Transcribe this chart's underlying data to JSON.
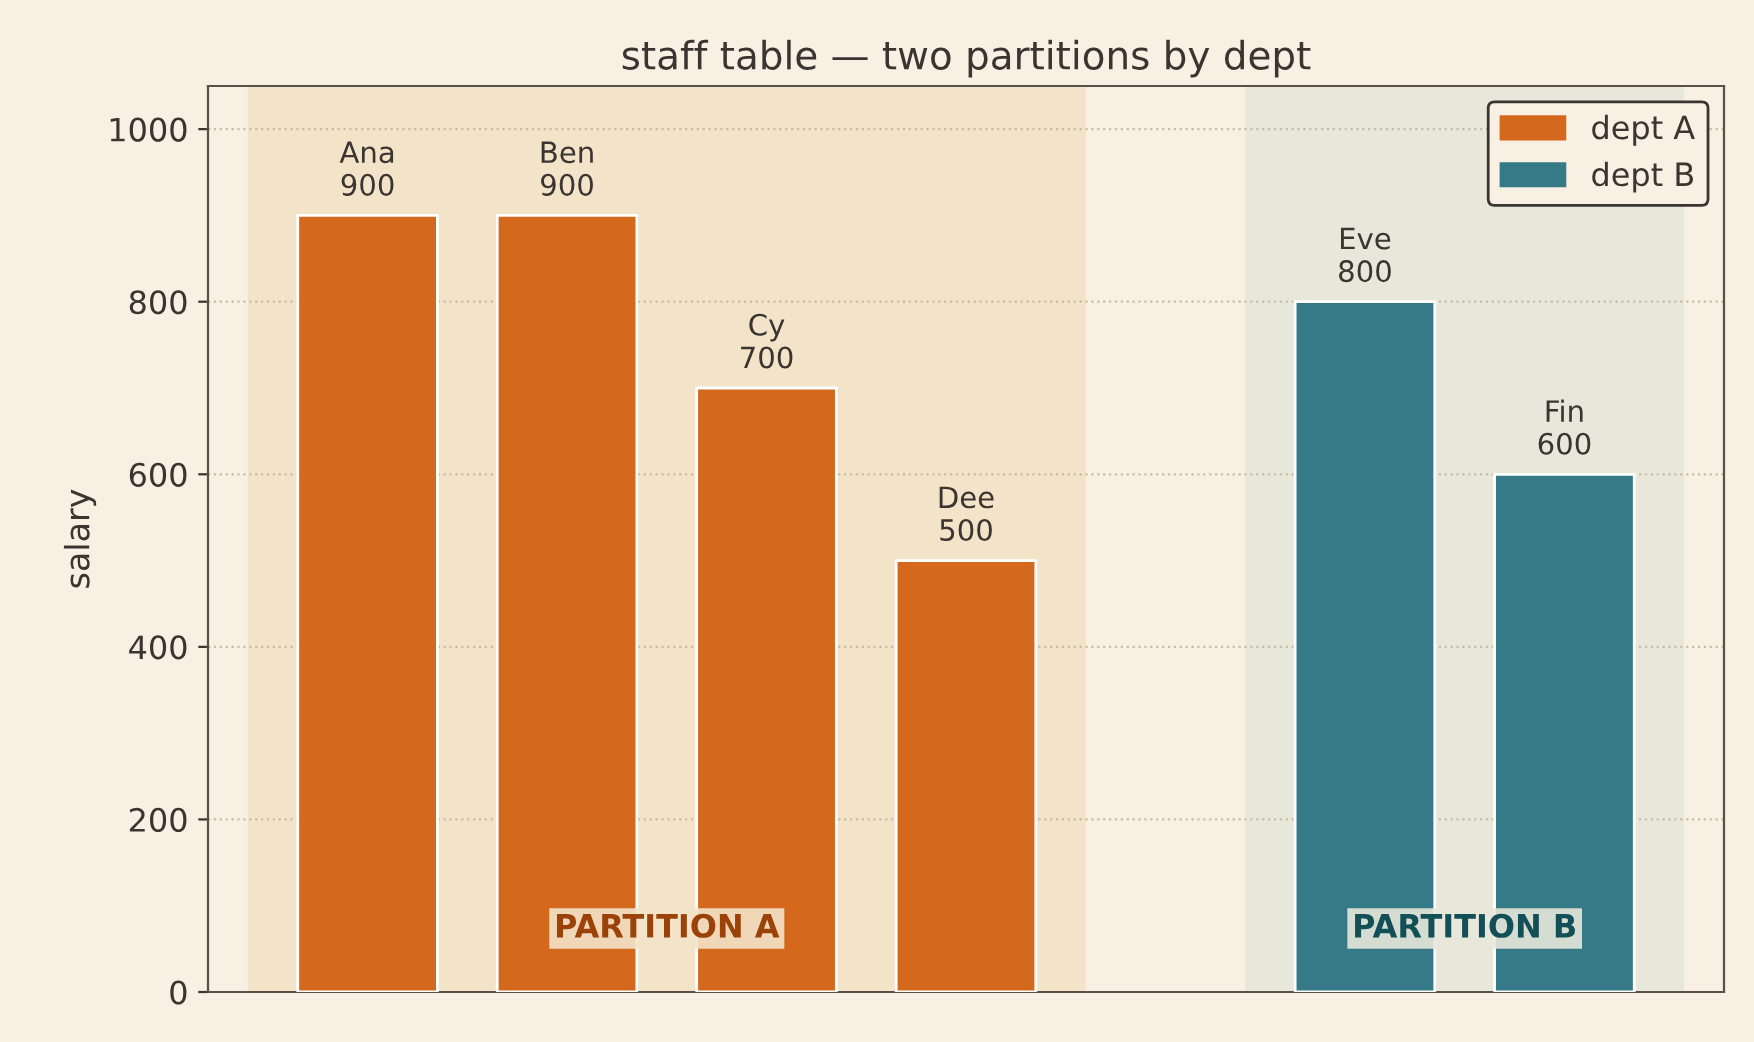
{
  "chart_data": {
    "type": "bar",
    "title": "staff table — two partitions by dept",
    "ylabel": "salary",
    "categories": [
      null,
      null,
      null,
      null,
      null,
      null,
      null
    ],
    "series": [
      {
        "name": "dept A",
        "color": "#d4691e",
        "values": [
          900,
          900,
          700,
          500,
          null,
          null,
          null
        ],
        "value_labels": [
          "Ana\n900",
          "Ben\n900",
          "Cy\n700",
          "Dee\n500",
          null,
          null,
          null
        ]
      },
      {
        "name": "dept B",
        "color": "#357a86",
        "values": [
          null,
          null,
          null,
          null,
          null,
          800,
          600
        ],
        "value_labels": [
          null,
          null,
          null,
          null,
          null,
          "Eve\n800",
          "Fin\n600"
        ]
      }
    ],
    "ylim": [
      0,
      1050
    ],
    "yticks": [
      0,
      200,
      400,
      600,
      800,
      1000
    ],
    "annotations": [
      "PARTITION A",
      "PARTITION B"
    ],
    "grid": "y",
    "legend": "top right",
    "tick_labels": "y"
  }
}
